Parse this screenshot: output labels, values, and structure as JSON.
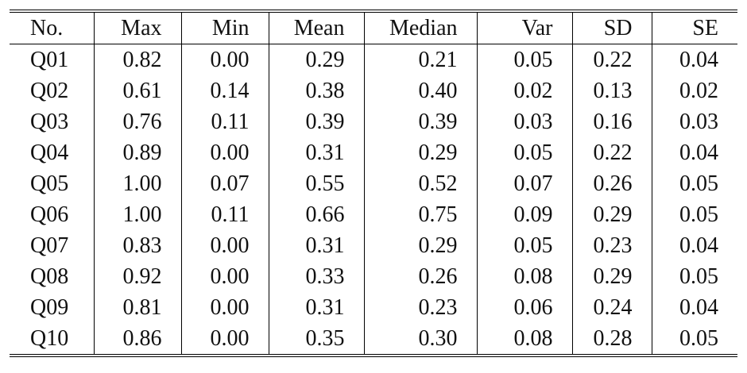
{
  "table": {
    "headers": [
      "No.",
      "Max",
      "Min",
      "Mean",
      "Median",
      "Var",
      "SD",
      "SE"
    ],
    "rows": [
      [
        "Q01",
        "0.82",
        "0.00",
        "0.29",
        "0.21",
        "0.05",
        "0.22",
        "0.04"
      ],
      [
        "Q02",
        "0.61",
        "0.14",
        "0.38",
        "0.40",
        "0.02",
        "0.13",
        "0.02"
      ],
      [
        "Q03",
        "0.76",
        "0.11",
        "0.39",
        "0.39",
        "0.03",
        "0.16",
        "0.03"
      ],
      [
        "Q04",
        "0.89",
        "0.00",
        "0.31",
        "0.29",
        "0.05",
        "0.22",
        "0.04"
      ],
      [
        "Q05",
        "1.00",
        "0.07",
        "0.55",
        "0.52",
        "0.07",
        "0.26",
        "0.05"
      ],
      [
        "Q06",
        "1.00",
        "0.11",
        "0.66",
        "0.75",
        "0.09",
        "0.29",
        "0.05"
      ],
      [
        "Q07",
        "0.83",
        "0.00",
        "0.31",
        "0.29",
        "0.05",
        "0.23",
        "0.04"
      ],
      [
        "Q08",
        "0.92",
        "0.00",
        "0.33",
        "0.26",
        "0.08",
        "0.29",
        "0.05"
      ],
      [
        "Q09",
        "0.81",
        "0.00",
        "0.31",
        "0.23",
        "0.06",
        "0.24",
        "0.04"
      ],
      [
        "Q10",
        "0.86",
        "0.00",
        "0.35",
        "0.30",
        "0.08",
        "0.28",
        "0.05"
      ]
    ]
  }
}
